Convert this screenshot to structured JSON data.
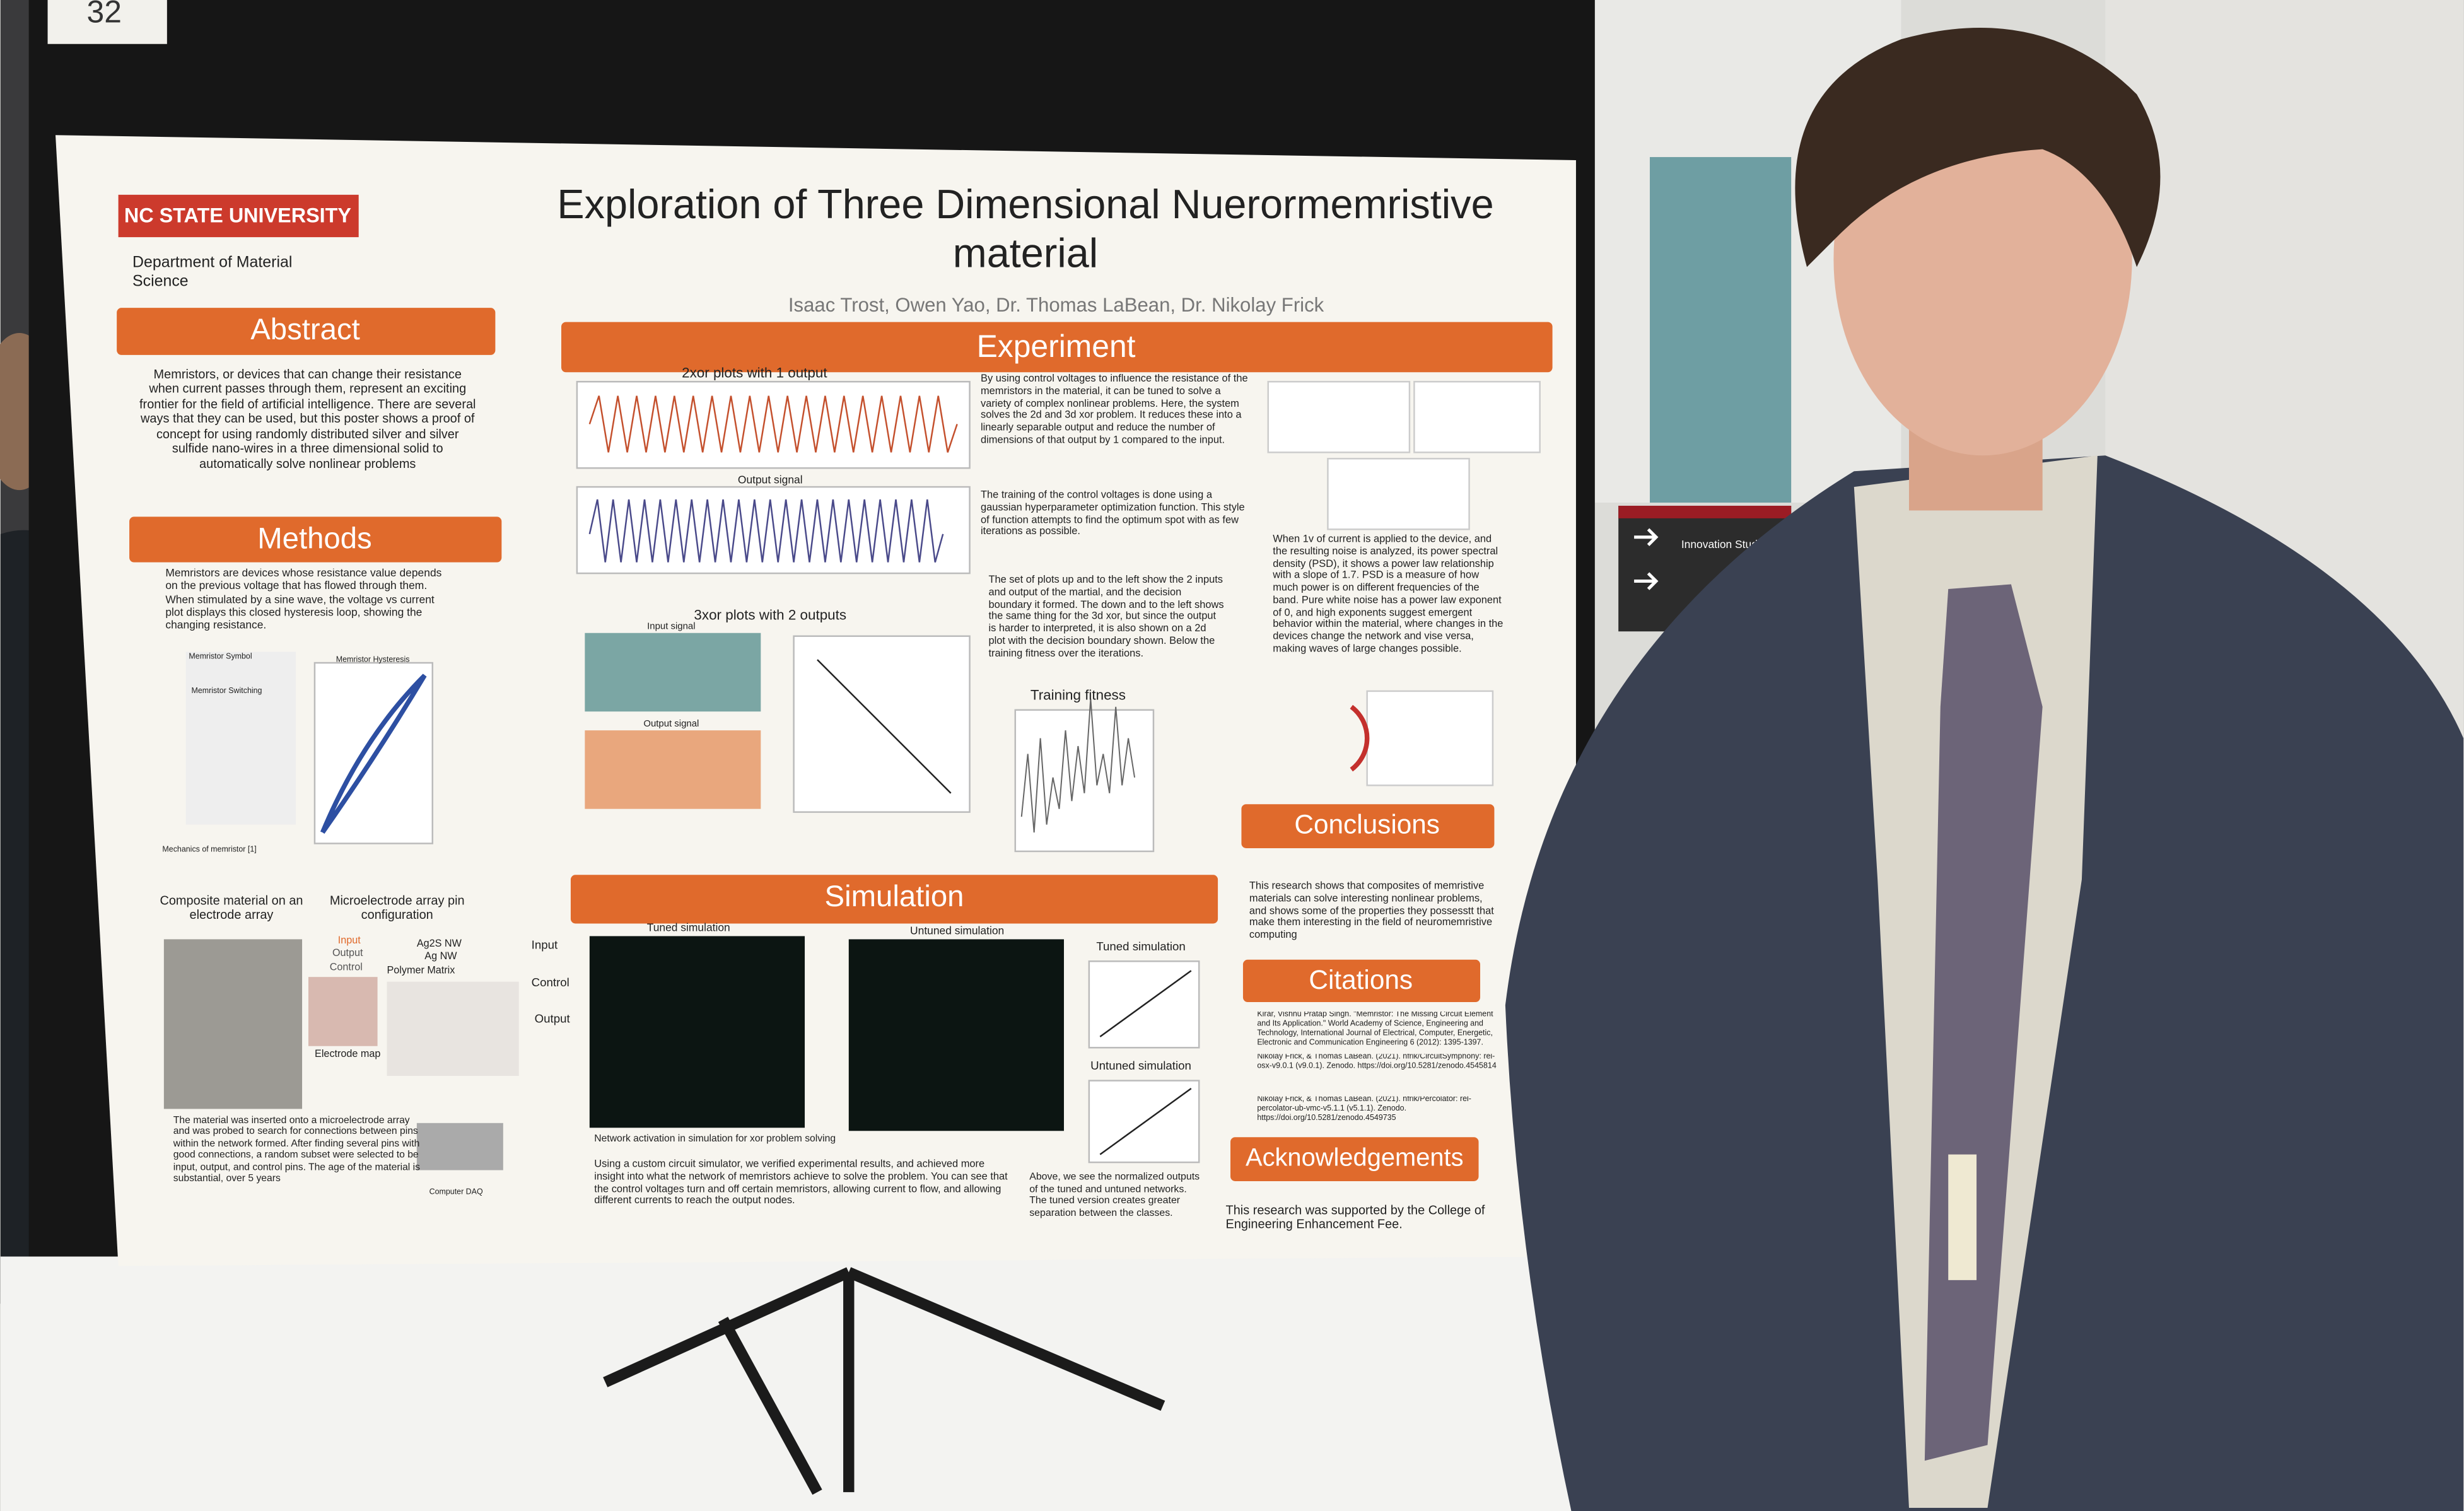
{
  "sign_number": "32",
  "wall_sign": "Innovation Studio",
  "poster": {
    "university": "NC STATE UNIVERSITY",
    "department": "Department of Material Science",
    "title": "Exploration of Three Dimensional Nuerormemristive material",
    "authors": "Isaac Trost, Owen Yao, Dr. Thomas LaBean, Dr. Nikolay Frick",
    "abstract": {
      "heading": "Abstract",
      "text": "Memristors, or devices that can change their resistance when current passes through them, represent an exciting frontier for the field of artificial intelligence. There are several ways that they can be used, but this poster shows a proof of concept for using randomly distributed silver and silver sulfide nano-wires in a three dimensional solid to automatically solve nonlinear problems"
    },
    "methods": {
      "heading": "Methods",
      "text": "Memristors are devices whose resistance value depends on the previous voltage that has flowed through them. When stimulated by a sine wave, the voltage vs current plot displays this closed hysteresis loop, showing the changing resistance.",
      "labels": {
        "symbol": "Memristor Symbol",
        "switching": "Memristor Switching",
        "hysteresis": "Memristor Hysteresis",
        "mechanics": "Mechanics of memristor [1]",
        "composite": "Composite material on an electrode array",
        "pin_config": "Microelectrode array pin configuration",
        "input": "Input",
        "output": "Output",
        "control": "Control",
        "ag2s": "Ag2S NW",
        "ag": "Ag NW",
        "polymer": "Polymer Matrix",
        "electrode_map": "Electrode map",
        "daq": "Computer DAQ"
      },
      "material_text": "The material was inserted onto a microelectrode array and was probed to search for connections between pins within the network formed. After finding several pins with good connections, a random subset were selected to be input, output, and control pins. The age of the material is substantial, over 5 years"
    },
    "experiment": {
      "heading": "Experiment",
      "plot_2xor": "2xor plots with 1 output",
      "output_signal": "Output signal",
      "plot_3xor": "3xor plots with 2 outputs",
      "input_signal": "Input signal",
      "output_signal_3": "Output signal",
      "training_fitness": "Training fitness",
      "text_1": "By using control voltages to influence the resistance of the memristors in the material, it can be tuned to solve a variety of complex nonlinear problems. Here, the system solves the 2d and 3d xor problem. It reduces these into a linearly separable output and reduce the number of dimensions of that output by 1 compared to the input.",
      "text_2": "The training of the control voltages is done using a gaussian hyperparameter optimization function. This style of function attempts to find the optimum spot with as few iterations as possible.",
      "text_3": "The set of plots up and to the left show the 2 inputs and output of the martial, and the decision boundary it formed. The down and to the left shows the same thing for the 3d xor, but since the output is harder to interpreted, it is also shown on a 2d plot with the decision boundary shown. Below the training fitness over the iterations.",
      "text_4": "When 1v of current is applied to the device, and the resulting noise is analyzed, its power spectral density (PSD), it shows a power law relationship with a slope of 1.7. PSD is a measure of how much power is on different frequencies of the band. Pure white noise has a power law exponent of 0, and high exponents suggest emergent behavior within the material, where changes in the devices change the network and vise versa, making waves of large changes possible."
    },
    "simulation": {
      "heading": "Simulation",
      "tuned": "Tuned simulation",
      "untuned": "Untuned simulation",
      "input": "Input",
      "control": "Control",
      "output": "Output",
      "tuned_plot": "Tuned simulation",
      "untuned_plot": "Untuned simulation",
      "caption": "Network activation in simulation for xor problem solving",
      "text": "Using a custom circuit simulator, we verified experimental results, and achieved more insight into what the network of memristors achieve to solve the problem. You can see that the control voltages turn and off certain memristors, allowing current to flow, and allowing different currents to reach the output nodes.",
      "above_text": "Above, we see the normalized outputs of the tuned and untuned networks. The tuned version creates greater separation between the classes."
    },
    "conclusions": {
      "heading": "Conclusions",
      "text": "This research shows that composites of memristive materials can solve interesting nonlinear problems, and shows some of the properties they possesstt that make them interesting in the field of neuromemristive computing"
    },
    "citations": {
      "heading": "Citations",
      "items": [
        "Kirar, Vishnu Pratap Singh. \"Memristor: The Missing Circuit Element and Its Application.\" World Academy of Science, Engineering and Technology, International Journal of Electrical, Computer, Energetic, Electronic and Communication Engineering 6 (2012): 1395-1397.",
        "Nikolay Frick, & Thomas LaBean. (2021). nfrik/CircuitSymphony: rel-osx-v9.0.1 (v9.0.1). Zenodo. https://doi.org/10.5281/zenodo.4545814",
        "Nikolay Frick, & Thomas LaBean. (2021). nfrik/Percolator: rel-percolator-ub-vmc-v5.1.1 (v5.1.1). Zenodo. https://doi.org/10.5281/zenodo.4549735"
      ]
    },
    "acknowledgements": {
      "heading": "Acknowledgements",
      "text": "This research was supported by the College of Engineering Enhancement Fee."
    }
  }
}
